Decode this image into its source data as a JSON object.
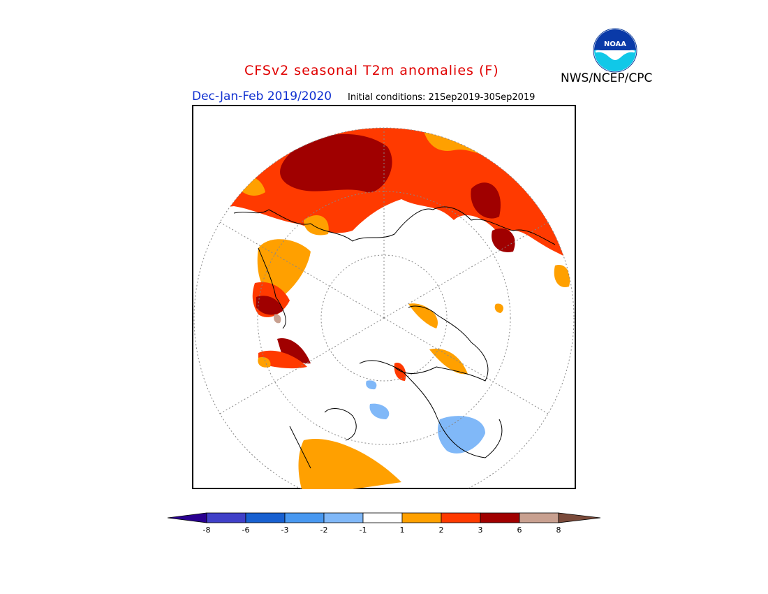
{
  "title": "CFSv2 seasonal T2m anomalies (F)",
  "agency": "NWS/NCEP/CPC",
  "logo_text": "NOAA",
  "season": "Dec-Jan-Feb 2019/2020",
  "initial_conditions": "Initial conditions: 21Sep2019-30Sep2019",
  "colors": {
    "title": "#e00000",
    "season": "#1030d0",
    "gt8": "#7a4a3a",
    "c6_8": "#c8a090",
    "c3_6": "#a00000",
    "c2_3": "#ff3a00",
    "c1_2": "#ffa000",
    "neutral": "#ffffff",
    "n1_2": "#80b8f8",
    "n2_3": "#4898f0",
    "n3_6": "#1860d0",
    "n6_8": "#4040c8",
    "lt8": "#2a0090"
  },
  "colorbar": {
    "labels": [
      "-8",
      "-6",
      "-3",
      "-2",
      "-1",
      "1",
      "2",
      "3",
      "6",
      "8"
    ],
    "colors": [
      "#4040c8",
      "#1860d0",
      "#4898f0",
      "#80b8f8",
      "#ffffff",
      "#ffa000",
      "#ff3a00",
      "#a00000",
      "#c8a090"
    ],
    "low_color": "#2a0090",
    "high_color": "#7a4a3a"
  }
}
